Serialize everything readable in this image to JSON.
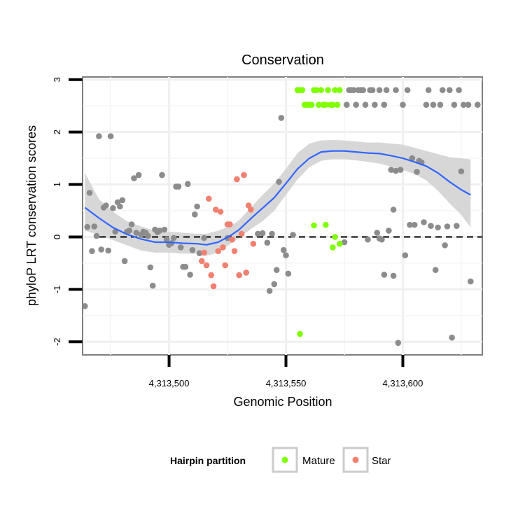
{
  "chart_data": {
    "type": "scatter",
    "title": "Conservation",
    "xlabel": "Genomic Position",
    "ylabel": "phyloP LRT conservation scores",
    "xlim": [
      4313463,
      4313634
    ],
    "ylim": [
      -2.25,
      3.05
    ],
    "x_ticks": [
      4313500,
      4313550,
      4313600
    ],
    "x_tick_labels": [
      "4,313,500",
      "4,313,550",
      "4,313,600"
    ],
    "y_ticks": [
      -2,
      -1,
      0,
      1,
      2,
      3
    ],
    "y_tick_labels": [
      "-2",
      "-1",
      "0",
      "1",
      "2",
      "3"
    ],
    "reference_line": {
      "y": 0,
      "style": "dashed"
    },
    "legend": {
      "title": "Hairpin partition",
      "position": "bottom",
      "entries": [
        {
          "label": "Mature",
          "color": "#7fff00"
        },
        {
          "label": "Star",
          "color": "#f08070"
        }
      ]
    },
    "colors": {
      "Other": "#8c8c8c",
      "Mature": "#7fff00",
      "Star": "#f08070",
      "smooth": "#3366ff",
      "ribbon": "#d3d3d3"
    },
    "series": [
      {
        "name": "Other",
        "points": [
          [
            4313464,
            -1.32
          ],
          [
            4313465,
            0.19
          ],
          [
            4313466,
            0.84
          ],
          [
            4313467,
            -0.27
          ],
          [
            4313468,
            0.2
          ],
          [
            4313469,
            0.02
          ],
          [
            4313470,
            1.92
          ],
          [
            4313471,
            -0.24
          ],
          [
            4313472,
            0.56
          ],
          [
            4313473,
            0.6
          ],
          [
            4313474,
            -0.26
          ],
          [
            4313475,
            1.92
          ],
          [
            4313476,
            0.55
          ],
          [
            4313477,
            0.1
          ],
          [
            4313478,
            0.66
          ],
          [
            4313479,
            0.58
          ],
          [
            4313480,
            0.7
          ],
          [
            4313481,
            -0.46
          ],
          [
            4313482,
            0.1
          ],
          [
            4313483,
            0.12
          ],
          [
            4313484,
            0.24
          ],
          [
            4313485,
            1.12
          ],
          [
            4313486,
            0.08
          ],
          [
            4313487,
            1.18
          ],
          [
            4313488,
            0.04
          ],
          [
            4313489,
            0.1
          ],
          [
            4313490,
            0.08
          ],
          [
            4313491,
            0.02
          ],
          [
            4313492,
            -0.58
          ],
          [
            4313493,
            -0.93
          ],
          [
            4313494,
            0.14
          ],
          [
            4313495,
            0.09
          ],
          [
            4313496,
            0.12
          ],
          [
            4313497,
            1.18
          ],
          [
            4313498,
            0.14
          ],
          [
            4313499,
            -0.05
          ],
          [
            4313500,
            -0.15
          ],
          [
            4313501,
            -0.12
          ],
          [
            4313502,
            -0.02
          ],
          [
            4313503,
            0.96
          ],
          [
            4313504,
            0.96
          ],
          [
            4313505,
            -0.2
          ],
          [
            4313506,
            -0.57
          ],
          [
            4313507,
            -0.57
          ],
          [
            4313508,
            1.01
          ],
          [
            4313509,
            -0.72
          ],
          [
            4313510,
            -0.25
          ],
          [
            4313511,
            0.43
          ],
          [
            4313512,
            0.58
          ],
          [
            4313513,
            -0.31
          ],
          [
            4313515,
            -0.02
          ],
          [
            4313525,
            -0.02
          ],
          [
            4313538,
            0.06
          ],
          [
            4313540,
            0.07
          ],
          [
            4313542,
            -0.11
          ],
          [
            4313543,
            -1.03
          ],
          [
            4313544,
            0.06
          ],
          [
            4313545,
            -0.9
          ],
          [
            4313546,
            -0.63
          ],
          [
            4313547,
            1.05
          ],
          [
            4313548,
            2.27
          ],
          [
            4313549,
            -0.25
          ],
          [
            4313550,
            -0.35
          ],
          [
            4313551,
            -0.7
          ],
          [
            4313553,
            0.04
          ],
          [
            4313555,
            2.8
          ],
          [
            4313575,
            -0.1
          ],
          [
            4313577,
            2.8
          ],
          [
            4313578,
            2.8
          ],
          [
            4313579,
            2.8
          ],
          [
            4313580,
            2.52
          ],
          [
            4313581,
            2.8
          ],
          [
            4313582,
            2.8
          ],
          [
            4313583,
            2.8
          ],
          [
            4313584,
            2.52
          ],
          [
            4313585,
            -0.05
          ],
          [
            4313587,
            2.8
          ],
          [
            4313588,
            2.52
          ],
          [
            4313589,
            0.08
          ],
          [
            4313590,
            2.8
          ],
          [
            4313591,
            -0.05
          ],
          [
            4313592,
            2.52
          ],
          [
            4313593,
            2.8
          ],
          [
            4313594,
            0.12
          ],
          [
            4313595,
            1.28
          ],
          [
            4313596,
            0.52
          ],
          [
            4313597,
            1.26
          ],
          [
            4313598,
            -2.02
          ],
          [
            4313599,
            1.28
          ],
          [
            4313600,
            2.52
          ],
          [
            4313601,
            -0.35
          ],
          [
            4313602,
            2.8
          ],
          [
            4313603,
            0.23
          ],
          [
            4313604,
            1.5
          ],
          [
            4313605,
            0.23
          ],
          [
            4313606,
            1.24
          ],
          [
            4313607,
            1.45
          ],
          [
            4313608,
            1.42
          ],
          [
            4313609,
            0.28
          ],
          [
            4313610,
            2.52
          ],
          [
            4313611,
            2.8
          ],
          [
            4313612,
            0.21
          ],
          [
            4313613,
            2.52
          ],
          [
            4313614,
            -0.63
          ],
          [
            4313615,
            0.18
          ],
          [
            4313616,
            2.52
          ],
          [
            4313617,
            2.8
          ],
          [
            4313618,
            -0.16
          ],
          [
            4313619,
            0.2
          ],
          [
            4313620,
            2.8
          ],
          [
            4313621,
            -1.92
          ],
          [
            4313622,
            2.52
          ],
          [
            4313623,
            0.21
          ],
          [
            4313624,
            2.8
          ],
          [
            4313625,
            1.25
          ],
          [
            4313626,
            2.52
          ],
          [
            4313628,
            2.52
          ],
          [
            4313629,
            -0.85
          ],
          [
            4313632,
            2.52
          ],
          [
            4313596,
            -0.74
          ],
          [
            4313592,
            -0.72
          ],
          [
            4313590,
            -0.03
          ],
          [
            4313586,
            2.8
          ],
          [
            4313576,
            2.52
          ],
          [
            4313597,
            2.8
          ]
        ]
      },
      {
        "name": "Mature",
        "points": [
          [
            4313555,
            2.8
          ],
          [
            4313556,
            2.8
          ],
          [
            4313557,
            2.8
          ],
          [
            4313558,
            2.52
          ],
          [
            4313559,
            2.52
          ],
          [
            4313560,
            2.52
          ],
          [
            4313561,
            2.52
          ],
          [
            4313562,
            2.8
          ],
          [
            4313563,
            2.8
          ],
          [
            4313564,
            2.52
          ],
          [
            4313565,
            2.8
          ],
          [
            4313566,
            2.52
          ],
          [
            4313567,
            2.52
          ],
          [
            4313568,
            2.8
          ],
          [
            4313569,
            2.52
          ],
          [
            4313570,
            2.52
          ],
          [
            4313571,
            2.8
          ],
          [
            4313572,
            2.52
          ],
          [
            4313573,
            2.8
          ],
          [
            4313562,
            0.22
          ],
          [
            4313567,
            0.23
          ],
          [
            4313570,
            -0.2
          ],
          [
            4313571,
            0.0
          ],
          [
            4313573,
            -0.13
          ],
          [
            4313556,
            -1.85
          ]
        ]
      },
      {
        "name": "Star",
        "points": [
          [
            4313514,
            -0.46
          ],
          [
            4313515,
            -0.3
          ],
          [
            4313516,
            -0.54
          ],
          [
            4313517,
            0.73
          ],
          [
            4313518,
            -0.73
          ],
          [
            4313519,
            -0.94
          ],
          [
            4313520,
            0.52
          ],
          [
            4313521,
            -0.27
          ],
          [
            4313522,
            0.48
          ],
          [
            4313523,
            -0.2
          ],
          [
            4313524,
            -0.54
          ],
          [
            4313525,
            0.24
          ],
          [
            4313526,
            0.24
          ],
          [
            4313527,
            -0.05
          ],
          [
            4313528,
            -0.27
          ],
          [
            4313529,
            1.1
          ],
          [
            4313530,
            -0.73
          ],
          [
            4313531,
            0.06
          ],
          [
            4313532,
            1.18
          ],
          [
            4313533,
            -0.68
          ],
          [
            4313534,
            0.6
          ],
          [
            4313535,
            0.52
          ],
          [
            4313536,
            -0.13
          ]
        ]
      }
    ],
    "smooth_line": [
      [
        4313464,
        0.56
      ],
      [
        4313470,
        0.36
      ],
      [
        4313476,
        0.18
      ],
      [
        4313482,
        0.05
      ],
      [
        4313488,
        -0.04
      ],
      [
        4313494,
        -0.1
      ],
      [
        4313500,
        -0.1
      ],
      [
        4313506,
        -0.12
      ],
      [
        4313512,
        -0.13
      ],
      [
        4313516,
        -0.15
      ],
      [
        4313521,
        -0.1
      ],
      [
        4313526,
        0.02
      ],
      [
        4313530,
        0.14
      ],
      [
        4313535,
        0.35
      ],
      [
        4313540,
        0.55
      ],
      [
        4313545,
        0.75
      ],
      [
        4313550,
        1.02
      ],
      [
        4313555,
        1.3
      ],
      [
        4313560,
        1.5
      ],
      [
        4313565,
        1.62
      ],
      [
        4313570,
        1.64
      ],
      [
        4313575,
        1.64
      ],
      [
        4313580,
        1.62
      ],
      [
        4313585,
        1.6
      ],
      [
        4313590,
        1.59
      ],
      [
        4313595,
        1.55
      ],
      [
        4313600,
        1.5
      ],
      [
        4313605,
        1.43
      ],
      [
        4313610,
        1.35
      ],
      [
        4313615,
        1.22
      ],
      [
        4313620,
        1.05
      ],
      [
        4313625,
        0.9
      ],
      [
        4313629,
        0.8
      ]
    ],
    "smooth_band": [
      [
        4313464,
        0.12,
        1.22
      ],
      [
        4313470,
        0.04,
        0.72
      ],
      [
        4313476,
        -0.06,
        0.48
      ],
      [
        4313482,
        -0.16,
        0.3
      ],
      [
        4313488,
        -0.26,
        0.2
      ],
      [
        4313494,
        -0.3,
        0.12
      ],
      [
        4313500,
        -0.3,
        0.1
      ],
      [
        4313506,
        -0.32,
        0.08
      ],
      [
        4313512,
        -0.32,
        0.06
      ],
      [
        4313516,
        -0.36,
        0.06
      ],
      [
        4313521,
        -0.3,
        0.12
      ],
      [
        4313526,
        -0.14,
        0.2
      ],
      [
        4313530,
        -0.02,
        0.32
      ],
      [
        4313535,
        0.15,
        0.56
      ],
      [
        4313540,
        0.3,
        0.8
      ],
      [
        4313545,
        0.5,
        1.02
      ],
      [
        4313550,
        0.8,
        1.3
      ],
      [
        4313555,
        1.1,
        1.6
      ],
      [
        4313560,
        1.33,
        1.78
      ],
      [
        4313565,
        1.45,
        1.84
      ],
      [
        4313570,
        1.48,
        1.85
      ],
      [
        4313575,
        1.48,
        1.84
      ],
      [
        4313580,
        1.46,
        1.82
      ],
      [
        4313585,
        1.43,
        1.8
      ],
      [
        4313590,
        1.4,
        1.8
      ],
      [
        4313595,
        1.34,
        1.78
      ],
      [
        4313600,
        1.28,
        1.76
      ],
      [
        4313605,
        1.2,
        1.7
      ],
      [
        4313610,
        1.08,
        1.64
      ],
      [
        4313615,
        0.88,
        1.58
      ],
      [
        4313620,
        0.64,
        1.52
      ],
      [
        4313625,
        0.42,
        1.5
      ],
      [
        4313629,
        0.18,
        1.48
      ]
    ]
  }
}
